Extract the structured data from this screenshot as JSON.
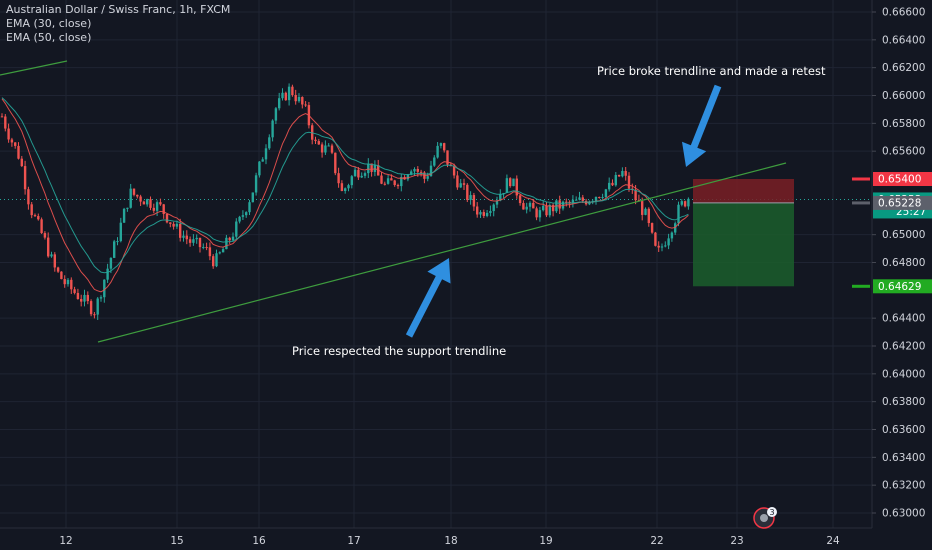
{
  "chart_data": {
    "type": "candlestick",
    "title": "Australian Dollar / Swiss Franc, 1h, FXCM",
    "indicators": [
      "EMA (30, close)",
      "EMA (50, close)"
    ],
    "x_ticks": [
      "12",
      "15",
      "16",
      "17",
      "18",
      "19",
      "22",
      "23",
      "24"
    ],
    "y_ticks": [
      "0.66600",
      "0.66400",
      "0.66200",
      "0.66000",
      "0.65800",
      "0.65600",
      "0.65000",
      "0.64800",
      "0.64400",
      "0.64200",
      "0.64000",
      "0.63800",
      "0.63600",
      "0.63400",
      "0.63200",
      "0.63000"
    ],
    "ylim": [
      0.6292,
      0.6669
    ],
    "price_tags": {
      "stop": "0.65400",
      "current": "0.65253",
      "countdown": "25:27",
      "entry": "0.65228",
      "target": "0.64629"
    },
    "candles": [],
    "annotations": {
      "top": "Price broke trendline and made a retest",
      "bottom": "Price respected the support trendline"
    },
    "event_badge": "3",
    "colors": {
      "background": "#131722",
      "up": "#26a69a",
      "down": "#ef5350",
      "ema30": "#ef5350",
      "ema50": "#26a69a",
      "trendline": "#3e9c3e",
      "arrow": "#2f8fe0",
      "stop_zone": "#7a1f24",
      "target_zone": "#1b5e2c",
      "stop_tag": "#f23645",
      "target_tag": "#22ab22",
      "current_tag": "#089981",
      "entry_tag": "#5d606b"
    }
  }
}
